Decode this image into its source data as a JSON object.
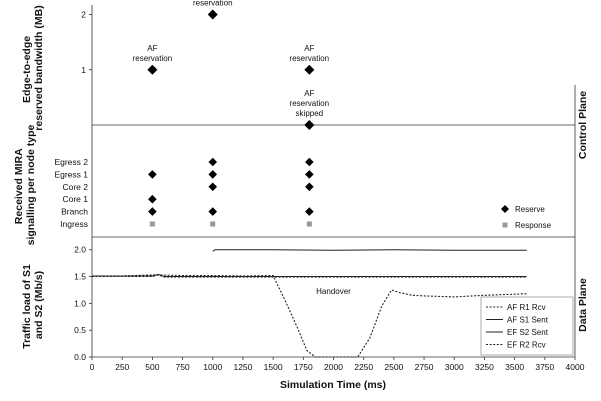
{
  "chart_data": [
    {
      "type": "scatter",
      "panel": "top",
      "ylabel": "Edge-to-edge reserved bandwidth (MB)",
      "yticks": [
        {
          "v": 1,
          "label": "1"
        },
        {
          "v": 2,
          "label": "2"
        }
      ],
      "ylim": [
        0,
        2.1
      ],
      "points": [
        {
          "x": 500,
          "y": 1
        },
        {
          "x": 1000,
          "y": 2
        },
        {
          "x": 1800,
          "y": 1
        },
        {
          "x": 1800,
          "y": 0
        }
      ],
      "annotations": [
        {
          "x": 500,
          "y": 1,
          "lines": [
            "AF",
            "reservation"
          ]
        },
        {
          "x": 1000,
          "y": 2,
          "lines": [
            "EF",
            "reservation"
          ]
        },
        {
          "x": 1800,
          "y": 1,
          "lines": [
            "AF",
            "reservation"
          ]
        },
        {
          "x": 1800,
          "y": 0,
          "lines": [
            "AF",
            "reservation",
            "skipped"
          ]
        }
      ]
    },
    {
      "type": "scatter",
      "panel": "middle",
      "ylabel": "Received MIRA signalling per node type",
      "categories": [
        "Ingress",
        "Branch",
        "Core 1",
        "Core 2",
        "Egress 1",
        "Egress 2"
      ],
      "series": [
        {
          "name": "Reserve",
          "marker": "diamond",
          "points": [
            {
              "x": 500,
              "y": "Branch"
            },
            {
              "x": 500,
              "y": "Core 1"
            },
            {
              "x": 500,
              "y": "Egress 1"
            },
            {
              "x": 1000,
              "y": "Branch"
            },
            {
              "x": 1000,
              "y": "Core 2"
            },
            {
              "x": 1000,
              "y": "Egress 1"
            },
            {
              "x": 1000,
              "y": "Egress 2"
            },
            {
              "x": 1800,
              "y": "Branch"
            },
            {
              "x": 1800,
              "y": "Core 2"
            },
            {
              "x": 1800,
              "y": "Egress 1"
            },
            {
              "x": 1800,
              "y": "Egress 2"
            }
          ]
        },
        {
          "name": "Response",
          "marker": "square",
          "points": [
            {
              "x": 500,
              "y": "Ingress"
            },
            {
              "x": 1000,
              "y": "Ingress"
            },
            {
              "x": 1800,
              "y": "Ingress"
            }
          ]
        }
      ]
    },
    {
      "type": "line",
      "panel": "bottom",
      "ylabel": "Traffic load of S1 and S2 (Mb/s)",
      "xlabel": "Simulation Time (ms)",
      "xlim": [
        0,
        4000
      ],
      "xticks": [
        0,
        250,
        500,
        750,
        1000,
        1250,
        1500,
        1750,
        2000,
        2250,
        2500,
        2750,
        3000,
        3250,
        3500,
        3750,
        4000
      ],
      "ylim": [
        0,
        2.2
      ],
      "yticks": [
        {
          "v": 0.0,
          "label": "0.0"
        },
        {
          "v": 0.5,
          "label": "0.5"
        },
        {
          "v": 1.0,
          "label": "1.0"
        },
        {
          "v": 1.5,
          "label": "1.5"
        },
        {
          "v": 2.0,
          "label": "2.0"
        }
      ],
      "annotation": {
        "text": "Handover",
        "x": 2000,
        "y": 1.17
      },
      "series": [
        {
          "name": "AF R1 Rcv",
          "style": "dotted",
          "x": [
            0,
            500,
            550,
            600,
            3600
          ],
          "y": [
            1.5,
            1.5,
            1.53,
            1.49,
            1.49
          ]
        },
        {
          "name": "AF S1 Sent",
          "style": "solid",
          "x": [
            0,
            500,
            550,
            600,
            3600
          ],
          "y": [
            1.51,
            1.51,
            1.54,
            1.5,
            1.5
          ]
        },
        {
          "name": "EF S2 Sent",
          "style": "solid",
          "x": [
            1000,
            1020,
            1500,
            2000,
            2500,
            3000,
            3600
          ],
          "y": [
            1.97,
            2.0,
            2.0,
            1.99,
            2.0,
            1.99,
            1.99
          ]
        },
        {
          "name": "EF R2 Rcv",
          "style": "dotted",
          "x": [
            0,
            250,
            500,
            750,
            1000,
            1250,
            1500,
            1600,
            1700,
            1780,
            1850,
            2000,
            2150,
            2200,
            2300,
            2400,
            2480,
            2550,
            2650,
            2750,
            3000,
            3250,
            3500,
            3600
          ],
          "y": [
            1.5,
            1.51,
            1.53,
            1.52,
            1.52,
            1.51,
            1.52,
            1.05,
            0.55,
            0.12,
            0.0,
            0.0,
            0.0,
            0.0,
            0.35,
            0.95,
            1.25,
            1.2,
            1.15,
            1.14,
            1.12,
            1.15,
            1.17,
            1.18
          ]
        }
      ]
    }
  ],
  "labels": {
    "control_plane": "Control Plane",
    "data_plane": "Data Plane"
  },
  "colors": {
    "marker": "#000000",
    "response_marker": "#999999",
    "line": "#222222"
  }
}
